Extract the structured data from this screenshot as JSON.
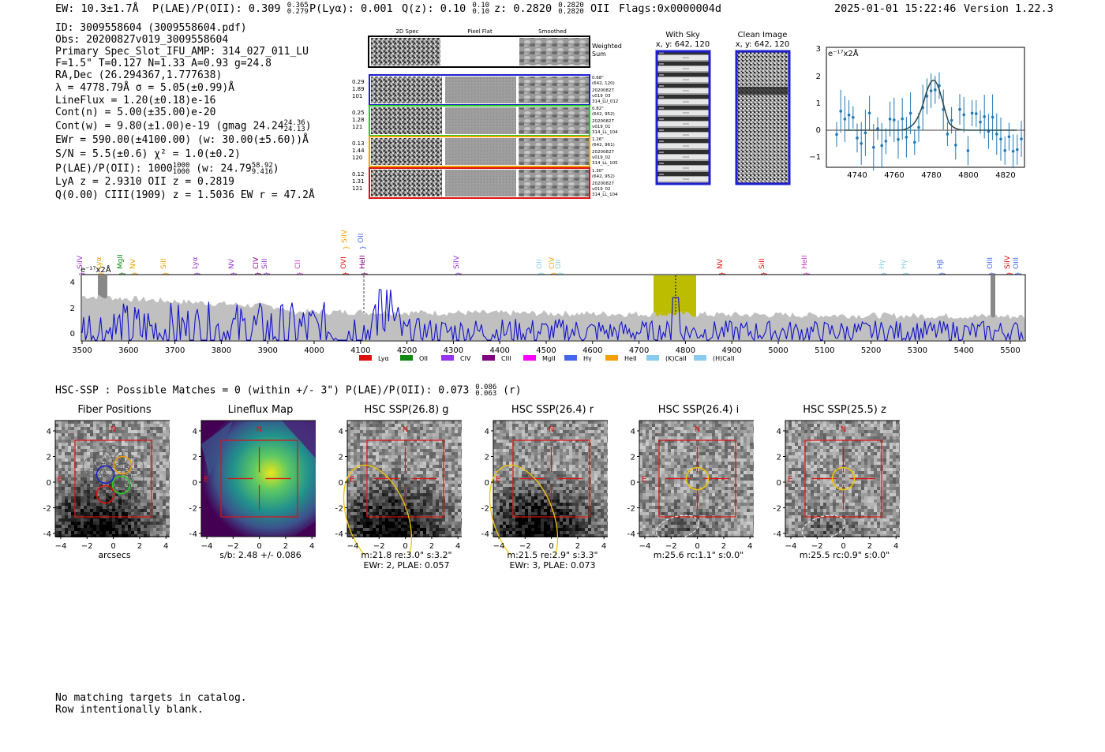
{
  "header": {
    "ew": "EW: 10.3±1.7Å",
    "plae_label": "P(LAE)/P(OII): 0.309",
    "plae_hi": "0.365",
    "plae_lo": "0.279",
    "plya": "P(Lyα): 0.001",
    "qz_label": "Q(z): 0.10",
    "qz_hi": "0.10",
    "qz_lo": "0.10",
    "z_label": "z: 0.2820",
    "z_hi": "0.2820",
    "z_lo": "0.2820",
    "z_line": "OII",
    "flags": "Flags:0x0000004d",
    "timestamp": "2025-01-01 15:22:46",
    "version": "Version 1.22.3"
  },
  "info": {
    "id": "ID: 3009558604 (3009558604.pdf)",
    "obs": "Obs: 20200827v019_3009558604",
    "primary": "Primary Spec_Slot_IFU_AMP: 314_027_011_LU",
    "fiber": "F=1.5\"  T=0.127  N=1.33  A=0.93  g=24.8",
    "radec": "RA,Dec (26.294367,1.777638)",
    "lambda": "λ = 4778.79Å  σ = 5.05(±0.99)Å",
    "lineflux": "LineFlux = 1.20(±0.18)e-16",
    "contn": "Cont(n) = 5.00(±35.00)e-20",
    "contw": "Cont(w) = 9.80(±1.00)e-19 (gmag 24.24",
    "contw_hi": "24.36",
    "contw_lo": "24.13",
    "ewr": "EWr = 590.00(±4100.00) (w: 30.00(±5.60))Å",
    "sn": "S/N = 5.5(±0.6)  χ² = 1.0(±0.2)",
    "plae": "P(LAE)/P(OII): 1000",
    "plae_hi": "1000",
    "plae_lo": "1000",
    "plae_w": "(w: 24.79",
    "plae_w_hi": "58.92",
    "plae_w_lo": "9.416",
    "lya": "LyA z = 2.9310  OII z = 0.2819",
    "q": "Q(0.00) CIII(1909) z = 1.5036  EW r = 47.2Å"
  },
  "cutouts": {
    "col_titles": [
      "2D Spec",
      "Pixel Flat",
      "Smoothed"
    ],
    "weighted_sum": [
      "Weighted",
      "Sum"
    ],
    "rows": [
      {
        "left": [
          "0.29",
          "1.89",
          "101"
        ],
        "right": [
          "0.68\"",
          "(642, 120)",
          "20200827",
          "v019_03",
          "314_LU_012"
        ],
        "color": "#1f1fd0"
      },
      {
        "left": [
          "0.25",
          "1.28",
          "121"
        ],
        "right": [
          "0.82\"",
          "(642, 952)",
          "20200827",
          "v019_01",
          "314_LL_104"
        ],
        "color": "#22cc22"
      },
      {
        "left": [
          "0.13",
          "1.44",
          "120"
        ],
        "right": [
          "1.26\"",
          "(642, 961)",
          "20200827",
          "v019_02",
          "314_LL_105"
        ],
        "color": "#f2a000"
      },
      {
        "left": [
          "0.12",
          "1.31",
          "121"
        ],
        "right": [
          "1.30\"",
          "(642, 952)",
          "20200827",
          "v019_02",
          "314_LL_104"
        ],
        "color": "#e01010"
      }
    ]
  },
  "sky": {
    "with_sky_title": "With Sky",
    "with_sky_xy": "x, y: 642, 120",
    "clean_title": "Clean Image",
    "clean_xy": "x, y: 642, 120"
  },
  "zoom_plot": {
    "ylabel": "e⁻¹⁷x2Å",
    "xticks": [
      "4740",
      "4760",
      "4780",
      "4800",
      "4820"
    ],
    "yticks": [
      "3",
      "2",
      "1",
      "0",
      "−1"
    ]
  },
  "spectrum": {
    "ylabel": "e⁻¹⁷x2Å",
    "xticks": [
      "3500",
      "3600",
      "3700",
      "3800",
      "3900",
      "4000",
      "4100",
      "4200",
      "4300",
      "4400",
      "4500",
      "4600",
      "4700",
      "4800",
      "4900",
      "5000",
      "5100",
      "5200",
      "5300",
      "5400",
      "5500"
    ],
    "yticks": [
      "4",
      "2",
      "0"
    ],
    "line_labels": [
      {
        "name": "SiIV",
        "color": "#9933cc"
      },
      {
        "name": "Lyα",
        "color": "#f2a000"
      },
      {
        "name": "MgII",
        "color": "#118811"
      },
      {
        "name": "NV",
        "color": "#f2a000"
      },
      {
        "name": "SiII",
        "color": "#f2a000"
      },
      {
        "name": "Lyα",
        "color": "#9933cc"
      },
      {
        "name": "NV",
        "color": "#9933cc"
      },
      {
        "name": "CIV",
        "color": "#800080"
      },
      {
        "name": "SiII",
        "color": "#9933cc"
      },
      {
        "name": "CII",
        "color": "#cc33cc"
      },
      {
        "name": "OVI",
        "color": "#e01010"
      },
      {
        "name": "HeII",
        "color": "#800080"
      },
      {
        "name": "SiIV",
        "color": "#f2a000"
      },
      {
        "name": "OII",
        "color": "#4466ee"
      },
      {
        "name": "SiIV",
        "color": "#9933cc"
      },
      {
        "name": "OII",
        "color": "#88ccee"
      },
      {
        "name": "CIV",
        "color": "#f2a000"
      },
      {
        "name": "OII",
        "color": "#88ccee"
      },
      {
        "name": "NV",
        "color": "#e01010"
      },
      {
        "name": "SiII",
        "color": "#e01010"
      },
      {
        "name": "HeII",
        "color": "#cc33cc"
      },
      {
        "name": "Hγ",
        "color": "#88ccee"
      },
      {
        "name": "Hγ",
        "color": "#88ccee"
      },
      {
        "name": "Hβ",
        "color": "#4466ee"
      },
      {
        "name": "OIII",
        "color": "#4466ee"
      },
      {
        "name": "SiIV",
        "color": "#e01010"
      },
      {
        "name": "OIII",
        "color": "#4466ee"
      }
    ],
    "legend": [
      {
        "name": "Lyα",
        "color": "#e01010"
      },
      {
        "name": "OII",
        "color": "#118811"
      },
      {
        "name": "CIV",
        "color": "#9933ee"
      },
      {
        "name": "CIII",
        "color": "#800080"
      },
      {
        "name": "MgII",
        "color": "#ff00ff"
      },
      {
        "name": "Hγ",
        "color": "#4466ee"
      },
      {
        "name": "HeII",
        "color": "#f2a000"
      },
      {
        "name": "(K)CaII",
        "color": "#88ccee"
      },
      {
        "name": "(H)CaII",
        "color": "#88ccee"
      }
    ]
  },
  "hsc": {
    "line": "HSC-SSP : Possible Matches = 0 (within +/- 3\")  P(LAE)/P(OII): 0.073",
    "hi": "0.086",
    "lo": "0.063",
    "band": "(r)",
    "panels": [
      {
        "title": "Fiber Positions",
        "cap1": "arcsecs",
        "cap2": ""
      },
      {
        "title": "Lineflux Map",
        "cap1": "s/b: 2.48 +/- 0.086",
        "cap2": ""
      },
      {
        "title": "HSC SSP(26.8) g",
        "cap1": "m:21.8  re:3.0\"  s:3.2\"",
        "cap2": "EWr: 2, PLAE: 0.057"
      },
      {
        "title": "HSC SSP(26.4) r",
        "cap1": "m:21.5  re:2.9\"  s:3.3\"",
        "cap2": "EWr: 3, PLAE: 0.073"
      },
      {
        "title": "HSC SSP(26.4) i",
        "cap1": "m:25.6 rc:1.1\"  s:0.0\"",
        "cap2": ""
      },
      {
        "title": "HSC SSP(25.5) z",
        "cap1": "m:25.5 rc:0.9\"  s:0.0\"",
        "cap2": ""
      }
    ],
    "axis_ticks": [
      "4",
      "2",
      "0",
      "−2",
      "−4"
    ],
    "x_ticks": [
      "−4",
      "−2",
      "0",
      "2",
      "4"
    ],
    "north": "N",
    "east": "E"
  },
  "footer": {
    "line1": "No matching targets in catalog.",
    "line2": "Row intentionally blank."
  }
}
